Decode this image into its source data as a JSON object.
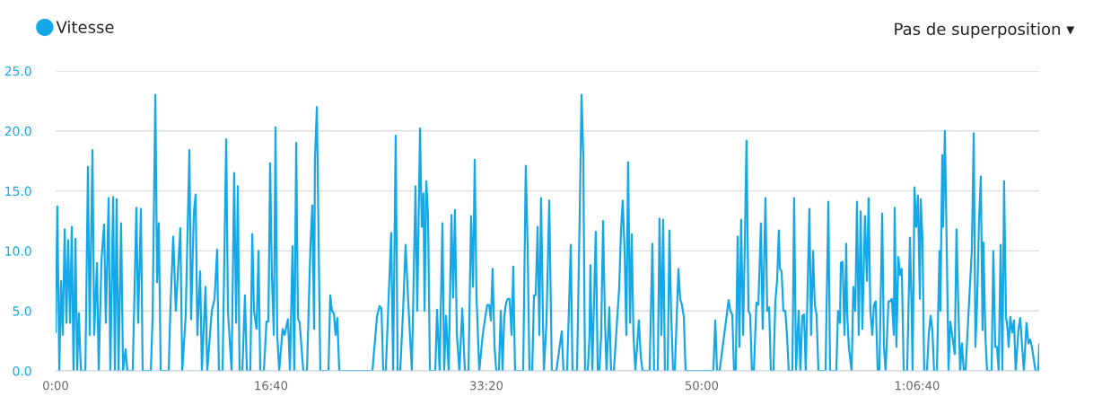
{
  "chart_data": {
    "type": "line",
    "x": [
      0,
      8,
      17,
      25,
      33,
      42,
      50,
      58,
      67,
      75,
      83,
      92,
      100,
      108,
      117,
      138,
      150,
      158,
      171,
      179,
      192,
      200,
      213,
      225,
      233,
      246,
      254,
      267,
      275,
      283,
      292,
      304,
      313,
      325,
      333,
      358,
      375,
      383,
      396,
      404,
      442,
      450,
      463,
      471,
      479,
      488,
      525,
      533,
      546,
      558,
      579,
      588,
      604,
      621,
      629,
      642,
      650,
      658,
      671,
      679,
      696,
      704,
      725,
      738,
      750,
      758,
      775,
      792,
      800,
      817,
      829,
      838,
      846,
      854,
      867,
      879,
      888,
      904,
      913,
      921,
      933,
      942,
      950,
      967,
      979,
      988,
      996,
      1004,
      1013,
      1021,
      1029,
      1038,
      1054,
      1063,
      1079,
      1088,
      1100,
      1108,
      1117,
      1125,
      1133,
      1150,
      1167,
      1183,
      1192,
      1200,
      1204,
      1213,
      1221,
      1229,
      1267,
      1275,
      1283,
      1292,
      1300,
      1308,
      1317,
      1471,
      1492,
      1504,
      1513,
      1521,
      1533,
      1558,
      1567,
      1579,
      1588,
      1600,
      1613,
      1625,
      1638,
      1654,
      1671,
      1679,
      1692,
      1700,
      1708,
      1713,
      1721,
      1729,
      1738,
      1763,
      1771,
      1783,
      1796,
      1804,
      1813,
      1825,
      1838,
      1846,
      1854,
      1863,
      1875,
      1888,
      1900,
      1917,
      1929,
      1938,
      1946,
      1954,
      1967,
      1983,
      1996,
      2004,
      2013,
      2021,
      2029,
      2038,
      2046,
      2058,
      2067,
      2075,
      2083,
      2092,
      2100,
      2108,
      2117,
      2125,
      2133,
      2171,
      2183,
      2192,
      2200,
      2213,
      2221,
      2229,
      2238,
      2246,
      2254,
      2263,
      2267,
      2279,
      2292,
      2304,
      2325,
      2350,
      2358,
      2375,
      2392,
      2400,
      2421,
      2433,
      2442,
      2450,
      2458,
      2471,
      2479,
      2483,
      2492,
      2508,
      2517,
      2525,
      2533,
      2542,
      2550,
      2558,
      2571,
      2579,
      2592,
      2617,
      2625,
      2633,
      2642,
      2650,
      2658,
      2667,
      2675,
      2683,
      2692,
      2708,
      2717,
      2725,
      2758,
      2771,
      2779,
      2796,
      2804,
      2813,
      2821,
      2829,
      2842,
      2850,
      2858,
      2867,
      2875,
      2892,
      2900,
      2908,
      2917,
      2925,
      3054,
      3063,
      3071,
      3083,
      3125,
      3133,
      3142,
      3150,
      3158,
      3167,
      3175,
      3183,
      3192,
      3200,
      3208,
      3217,
      3225,
      3233,
      3242,
      3254,
      3263,
      3275,
      3283,
      3296,
      3304,
      3313,
      3321,
      3333,
      3342,
      3350,
      3358,
      3363,
      3371,
      3379,
      3388,
      3396,
      3404,
      3421,
      3429,
      3438,
      3450,
      3458,
      3467,
      3475,
      3483,
      3500,
      3508,
      3517,
      3525,
      3533,
      3542,
      3575,
      3588,
      3596,
      3625,
      3633,
      3642,
      3646,
      3654,
      3663,
      3671,
      3675,
      3683,
      3696,
      3704,
      3713,
      3721,
      3729,
      3738,
      3746,
      3758,
      3767,
      3775,
      3783,
      3792,
      3800,
      3808,
      3817,
      3825,
      3838,
      3846,
      3854,
      3867,
      3875,
      3883,
      3892,
      3896,
      3904,
      3913,
      3921,
      3929,
      3938,
      3954,
      3967,
      3975,
      3979,
      3988,
      3996,
      4004,
      4013,
      4017,
      4025,
      4033,
      4046,
      4054,
      4063,
      4071,
      4079,
      4092,
      4104,
      4108,
      4117,
      4121,
      4129,
      4138,
      4146,
      4154,
      4163,
      4175,
      4183,
      4192,
      4200,
      4208,
      4217,
      4225,
      4254,
      4258,
      4263,
      4271,
      4279,
      4288,
      4296,
      4304,
      4308,
      4317,
      4325,
      4346,
      4354,
      4363,
      4371,
      4379,
      4388,
      4396,
      4404,
      4413,
      4421,
      4425,
      4433,
      4442,
      4450,
      4458,
      4471,
      4479,
      4488,
      4496,
      4508,
      4517,
      4525,
      4533,
      4550,
      4563,
      4567
    ],
    "series": [
      {
        "name": "Vitesse",
        "color": "#15a8e8",
        "values": [
          3.2,
          13.7,
          0,
          7.5,
          3,
          11.8,
          4,
          10.9,
          4,
          12,
          0,
          11,
          0,
          4.8,
          0,
          0,
          17,
          3,
          18.4,
          3,
          9,
          0,
          9.3,
          12.2,
          4,
          14.4,
          0,
          14.5,
          0,
          14.3,
          0,
          12.3,
          0,
          1.8,
          0,
          0,
          13.6,
          4,
          13.5,
          0,
          0,
          4.3,
          23,
          7.4,
          12.3,
          0,
          0,
          5.3,
          11.2,
          5,
          11.9,
          0,
          4.6,
          18.4,
          4.3,
          13.3,
          14.7,
          3,
          8.3,
          0,
          7,
          0,
          5,
          6,
          10.1,
          0,
          0,
          19.3,
          5,
          0,
          16.5,
          4,
          15.4,
          0,
          0,
          6.3,
          0,
          0,
          11.4,
          5,
          3.5,
          10,
          0,
          0,
          4.1,
          4.1,
          17.3,
          8,
          3,
          20.3,
          3,
          0,
          3.5,
          3,
          4.3,
          0,
          10.4,
          0,
          19,
          4.4,
          4,
          0,
          0,
          10.3,
          13.8,
          3.5,
          17.7,
          22,
          11,
          0,
          0,
          6.3,
          5,
          4.8,
          3,
          4.4,
          0,
          0,
          4.5,
          5.4,
          5.2,
          0,
          0,
          11.5,
          0,
          19.6,
          0,
          0,
          4.9,
          10.5,
          5.5,
          0,
          15.4,
          5,
          20.2,
          12,
          14.8,
          5,
          15.8,
          13,
          0,
          0,
          5.1,
          0,
          12.3,
          0,
          4.6,
          0,
          13,
          6.1,
          13.4,
          3,
          0,
          5.2,
          0,
          0,
          12.9,
          7,
          17.6,
          6.3,
          0,
          3,
          4.6,
          5.5,
          5.5,
          4.2,
          8.5,
          2,
          0,
          0,
          5,
          0,
          4.5,
          5.7,
          6,
          6,
          3,
          8.7,
          0,
          0,
          17.1,
          10,
          0,
          0,
          6.3,
          6.3,
          12,
          3,
          14.4,
          4,
          0,
          4,
          14.2,
          0,
          0,
          3.3,
          0,
          0,
          10.5,
          0,
          0,
          12.5,
          23,
          18,
          0,
          0,
          3,
          8.8,
          0,
          11.6,
          0,
          0,
          3,
          12.5,
          4.7,
          0,
          5.3,
          0,
          0,
          7,
          11.6,
          14.2,
          10,
          3,
          17.4,
          4,
          11.4,
          3,
          0,
          4.2,
          1.2,
          0,
          0,
          10.6,
          0,
          0,
          12.7,
          3,
          12.6,
          0,
          0,
          11.7,
          4.8,
          0,
          0,
          8.5,
          6,
          5.5,
          4.5,
          0,
          0,
          4.2,
          0,
          0,
          5.9,
          5,
          4.7,
          0,
          0,
          11.2,
          2,
          12.6,
          3,
          10.5,
          19.2,
          5,
          4.7,
          0,
          0,
          5.7,
          5.5,
          12.3,
          3.5,
          14.4,
          5,
          5.3,
          0,
          0,
          5.8,
          7.5,
          11.7,
          8.5,
          8.3,
          5,
          5,
          3,
          0,
          0,
          14.4,
          0,
          5,
          0,
          4.6,
          4.7,
          0,
          13.5,
          3,
          10,
          5.5,
          4.7,
          0,
          0,
          14.1,
          0,
          0,
          5,
          4,
          9,
          9.1,
          3,
          10.6,
          5,
          2,
          0,
          7,
          5,
          14.1,
          3,
          13.3,
          3.5,
          12.9,
          7.5,
          14.4,
          5,
          3,
          5.5,
          5.8,
          0,
          0,
          13.1,
          2,
          0,
          5.8,
          5.8,
          6,
          3,
          13.6,
          2,
          9.5,
          8,
          8.5,
          0,
          0,
          11.1,
          5,
          0,
          15.3,
          12,
          14.6,
          6,
          14.3,
          11,
          0,
          0,
          3,
          4.6,
          3.4,
          0,
          0,
          10,
          5,
          18,
          12,
          20,
          10,
          0,
          4.1,
          3,
          1.4,
          11.8,
          5,
          0,
          2.3,
          0,
          0,
          10,
          14,
          19.8,
          2,
          5.9,
          12.7,
          16.2,
          3.4,
          10.7,
          3,
          0,
          0,
          10,
          2,
          2,
          0,
          10.5,
          0,
          15.8,
          4.5,
          3.3,
          2,
          4.5,
          3.2,
          4.2,
          0,
          3.5,
          4.4,
          2,
          0,
          4,
          2.3,
          2.6,
          2,
          0,
          0,
          2.2
        ]
      }
    ],
    "xlim": [
      0,
      4567
    ],
    "xticks": [
      {
        "value": 0,
        "label": "0:00"
      },
      {
        "value": 1000,
        "label": "16:40"
      },
      {
        "value": 2000,
        "label": "33:20"
      },
      {
        "value": 3000,
        "label": "50:00"
      },
      {
        "value": 4000,
        "label": "1:06:40"
      }
    ],
    "ylim": [
      0,
      25
    ],
    "yticks": [
      {
        "value": 0,
        "label": "0.0"
      },
      {
        "value": 5,
        "label": "5.0"
      },
      {
        "value": 10,
        "label": "10.0"
      },
      {
        "value": 15,
        "label": "15.0"
      },
      {
        "value": 20,
        "label": "20.0"
      },
      {
        "value": 25,
        "label": "25.0"
      }
    ],
    "grid": "y",
    "legend": "top left",
    "marker": "none",
    "line_style": "solid",
    "annotations": [
      "Pas de superposition ▾"
    ]
  }
}
